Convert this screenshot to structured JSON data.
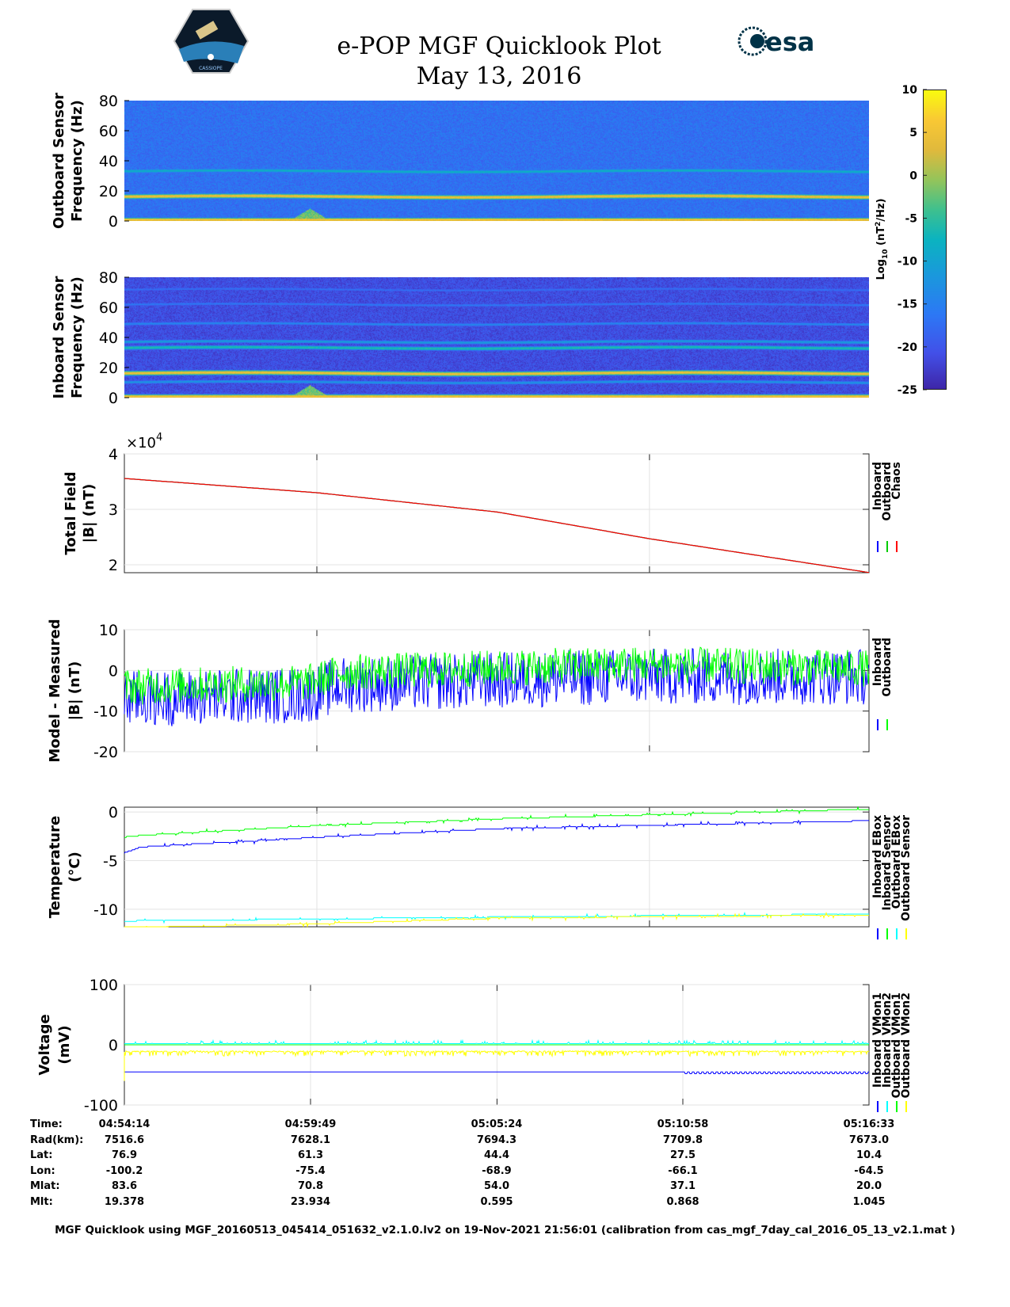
{
  "header": {
    "title": "e-POP MGF Quicklook Plot",
    "date": "May 13, 2016",
    "logo_left_text": "CASSIOPE",
    "logo_right_text": "esa"
  },
  "colorbar": {
    "label_main": "Log",
    "label_sub": "10",
    "label_rest1": " (nT",
    "label_sup": "2",
    "label_rest2": "/Hz)",
    "ticks": [
      "10",
      "5",
      "0",
      "-5",
      "-10",
      "-15",
      "-20",
      "-25"
    ],
    "range": [
      -25,
      10
    ]
  },
  "chart_data": [
    {
      "type": "heatmap",
      "name": "outboard-spectrogram",
      "ylabel": [
        "Outboard Sensor",
        "Frequency (Hz)"
      ],
      "ylim": [
        0,
        80
      ],
      "yticks": [
        "0",
        "20",
        "40",
        "60",
        "80"
      ],
      "xlim_minutes": [
        0,
        22.32
      ],
      "background_level": -17,
      "bands": [
        {
          "freq_hz": 16,
          "level": 5
        },
        {
          "freq_hz": 33,
          "level": -8
        },
        {
          "freq_hz": 0.5,
          "level": 6
        }
      ],
      "burst": {
        "t_minutes": 5.2,
        "freq_max_hz": 8,
        "level": -2
      }
    },
    {
      "type": "heatmap",
      "name": "inboard-spectrogram",
      "ylabel": [
        "Inboard Sensor",
        "Frequency (Hz)"
      ],
      "ylim": [
        0,
        80
      ],
      "yticks": [
        "0",
        "20",
        "40",
        "60",
        "80"
      ],
      "xlim_minutes": [
        0,
        22.32
      ],
      "background_level": -21,
      "bands": [
        {
          "freq_hz": 16,
          "level": 5
        },
        {
          "freq_hz": 33,
          "level": -6
        },
        {
          "freq_hz": 37,
          "level": -11
        },
        {
          "freq_hz": 49,
          "level": -14
        },
        {
          "freq_hz": 62,
          "level": -16
        },
        {
          "freq_hz": 72,
          "level": -17
        },
        {
          "freq_hz": 10,
          "level": -12
        },
        {
          "freq_hz": 0.5,
          "level": 6
        }
      ],
      "burst": {
        "t_minutes": 5.2,
        "freq_max_hz": 8,
        "level": -2
      }
    },
    {
      "type": "line",
      "name": "total-field",
      "ylabel": [
        "Total Field",
        "|B| (nT)"
      ],
      "multiplier": "×10",
      "multiplier_exp": "4",
      "ylim": [
        1.857,
        4
      ],
      "yticks": [
        "2",
        "3",
        "4"
      ],
      "ytick_values": [
        2,
        3,
        4
      ],
      "xlim_minutes": [
        0,
        22.32
      ],
      "series": [
        {
          "name": "Inboard",
          "color": "#0000ff",
          "noise": 0
        },
        {
          "name": "Outboard",
          "color": "#00cc00",
          "noise": 0
        },
        {
          "name": "Chaos",
          "color": "#ff0000",
          "noise": 0
        }
      ],
      "trend_x": [
        0,
        5.77,
        11.2,
        15.74,
        22.32
      ],
      "trend_y": [
        3.557,
        3.3,
        2.95,
        2.47,
        1.86
      ]
    },
    {
      "type": "line",
      "name": "model-minus-measured",
      "ylabel": [
        "Model - Measured",
        "|B| (nT)"
      ],
      "ylim": [
        -20,
        10
      ],
      "yticks": [
        "10",
        "0",
        "-10",
        "-20"
      ],
      "ytick_values": [
        10,
        0,
        -10,
        -20
      ],
      "xlim_minutes": [
        0,
        22.32
      ],
      "series": [
        {
          "name": "Inboard",
          "color": "#0000ff",
          "trend_x": [
            0,
            5.5,
            6.5,
            15,
            22.32
          ],
          "trend_y": [
            -7,
            -6,
            -3.5,
            -1.5,
            -1.5
          ],
          "noise": 7
        },
        {
          "name": "Outboard",
          "color": "#00ff00",
          "trend_x": [
            0,
            5.5,
            6.5,
            15,
            22.32
          ],
          "trend_y": [
            -4,
            -3,
            -0.5,
            1.5,
            0.5
          ],
          "noise": 4.5
        }
      ]
    },
    {
      "type": "line",
      "name": "temperature",
      "ylabel": [
        "Temperature",
        "(°C)"
      ],
      "ylim": [
        -11.8,
        0.5
      ],
      "yticks": [
        "0",
        "-5",
        "-10"
      ],
      "ytick_values": [
        0,
        -5,
        -10
      ],
      "xlim_minutes": [
        0,
        22.32
      ],
      "series": [
        {
          "name": "Inboard EBox",
          "color": "#0000ff",
          "trend_x": [
            0,
            0.5,
            5.77,
            11.2,
            22.32
          ],
          "trend_y": [
            -4.2,
            -3.6,
            -2.6,
            -1.7,
            -0.9
          ],
          "noise": 0.12
        },
        {
          "name": "Inboard Sensor",
          "color": "#00ff00",
          "trend_x": [
            0,
            0.5,
            5.77,
            11.2,
            22.32
          ],
          "trend_y": [
            -2.6,
            -2.4,
            -1.4,
            -0.7,
            0.3
          ],
          "noise": 0.12
        },
        {
          "name": "Outboard EBox",
          "color": "#00ffff",
          "trend_x": [
            0,
            5.77,
            11.2,
            22.32
          ],
          "trend_y": [
            -11.2,
            -11.0,
            -10.8,
            -10.5
          ],
          "noise": 0.1
        },
        {
          "name": "Outboard Sensor",
          "color": "#ffff00",
          "trend_x": [
            0,
            5.77,
            11.2,
            22.32
          ],
          "trend_y": [
            -11.9,
            -11.5,
            -10.9,
            -10.6
          ],
          "noise": 0.12
        }
      ]
    },
    {
      "type": "line",
      "name": "voltage",
      "ylabel": [
        "Voltage",
        "(mV)"
      ],
      "ylim": [
        -100,
        100
      ],
      "yticks": [
        "100",
        "0",
        "-100"
      ],
      "ytick_values": [
        100,
        0,
        -100
      ],
      "xlim_minutes": [
        0,
        22.32
      ],
      "series": [
        {
          "name": "Inboard VMon1",
          "color": "#0000ff",
          "trend_x": [
            0,
            22.32
          ],
          "trend_y": [
            -45,
            -45
          ],
          "noise": 1.5
        },
        {
          "name": "Inboard VMon2",
          "color": "#00ffff",
          "trend_x": [
            0,
            22.32
          ],
          "trend_y": [
            2,
            2
          ],
          "noise": 2.5
        },
        {
          "name": "Outboard VMon1",
          "color": "#00ff00",
          "trend_x": [
            0,
            22.32
          ],
          "trend_y": [
            0,
            0
          ],
          "noise": 0.5
        },
        {
          "name": "Outboard VMon2",
          "color": "#ffff00",
          "trend_x": [
            0,
            22.32
          ],
          "trend_y": [
            -11,
            -11
          ],
          "noise": 8
        }
      ]
    }
  ],
  "orbit_table": {
    "labels": [
      "Time:",
      "Rad(km):",
      "Lat:",
      "Lon:",
      "Mlat:",
      "Mlt:"
    ],
    "columns": [
      [
        "04:54:14",
        "7516.6",
        "76.9",
        "-100.2",
        "83.6",
        "19.378"
      ],
      [
        "04:59:49",
        "7628.1",
        "61.3",
        "-75.4",
        "70.8",
        "23.934"
      ],
      [
        "05:05:24",
        "7694.3",
        "44.4",
        "-68.9",
        "54.0",
        "0.595"
      ],
      [
        "05:10:58",
        "7709.8",
        "27.5",
        "-66.1",
        "37.1",
        "0.868"
      ],
      [
        "05:16:33",
        "7673.0",
        "10.4",
        "-64.5",
        "20.0",
        "1.045"
      ]
    ]
  },
  "footer": "MGF Quicklook using MGF_20160513_045414_051632_v2.1.0.lv2 on 19-Nov-2021 21:56:01 (calibration from cas_mgf_7day_cal_2016_05_13_v2.1.mat )"
}
